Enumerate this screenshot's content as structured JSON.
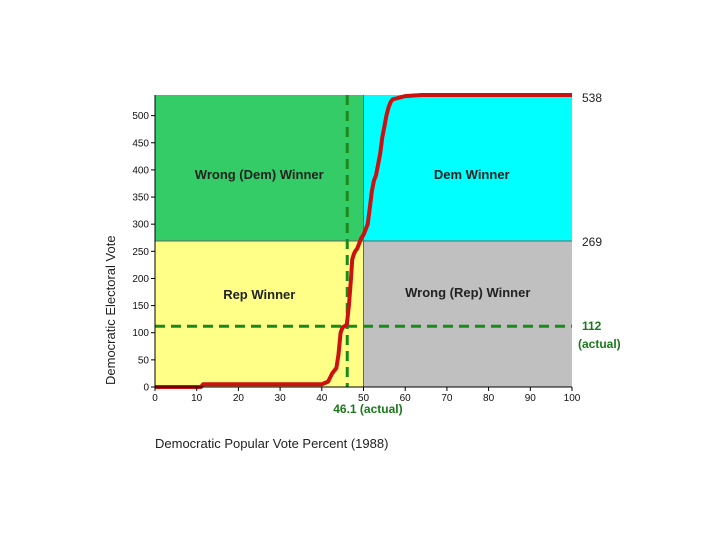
{
  "chart_data": {
    "type": "line",
    "xlabel": "Democratic Popular Vote Percent (1988)",
    "ylabel": "Democratic Electoral Vote",
    "xlim": [
      0,
      100
    ],
    "ylim": [
      0,
      538
    ],
    "xticks": [
      0,
      10,
      20,
      30,
      40,
      50,
      60,
      70,
      80,
      90,
      100
    ],
    "yticks": [
      0,
      50,
      100,
      150,
      200,
      250,
      300,
      350,
      400,
      450,
      500
    ],
    "quadrants": {
      "top_left": {
        "label": "Wrong (Dem) Winner",
        "color": "#33CC66"
      },
      "top_right": {
        "label": "Dem Winner",
        "color": "#00FFFF"
      },
      "bottom_left": {
        "label": "Rep Winner",
        "color": "#FFFF88"
      },
      "bottom_right": {
        "label": "Wrong (Rep) Winner",
        "color": "#C0C0C0"
      }
    },
    "split_x": 50,
    "split_y": 269,
    "right_labels": [
      "538",
      "269"
    ],
    "actual": {
      "popular_vote": 46.1,
      "electoral_vote": 112,
      "popular_label": "46.1  (actual)",
      "electoral_label": "112",
      "electoral_sublabel": "(actual)",
      "color": "#1a8a1a"
    },
    "series": [
      {
        "color": "#CC1111",
        "x": [
          0,
          11,
          11.5,
          40,
          41.5,
          42.5,
          43.5,
          44,
          44.5,
          45,
          45.5,
          46,
          46.5,
          47,
          47.3,
          47.7,
          48,
          48.5,
          49,
          49.5,
          50,
          50.5,
          51,
          51.5,
          52,
          52.5,
          53,
          53.5,
          54,
          54.5,
          55,
          55.5,
          56,
          56.5,
          57,
          58,
          59,
          60,
          62,
          64,
          100
        ],
        "y": [
          0,
          0,
          5,
          5,
          10,
          25,
          35,
          60,
          100,
          110,
          112,
          115,
          150,
          200,
          235,
          245,
          250,
          255,
          265,
          275,
          280,
          290,
          300,
          330,
          360,
          380,
          390,
          410,
          430,
          460,
          480,
          500,
          515,
          525,
          530,
          532,
          534,
          536,
          537,
          538,
          538
        ]
      }
    ]
  }
}
